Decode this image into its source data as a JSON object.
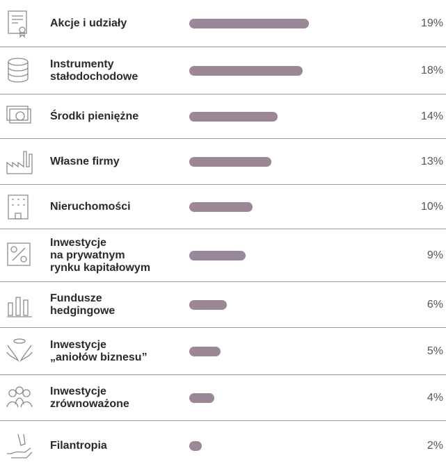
{
  "chart_data": {
    "type": "bar",
    "orientation": "horizontal",
    "categories": [
      "Akcje i udziały",
      "Instrumenty\nstałodochodowe",
      "Środki pieniężne",
      "Własne firmy",
      "Nieruchomości",
      "Inwestycje\nna prywatnym\nrynku kapitałowym",
      "Fundusze\nhedgingowe",
      "Inwestycje\n„aniołów biznesu”",
      "Inwestycje\nzrównoważone",
      "Filantropia"
    ],
    "values": [
      19,
      18,
      14,
      13,
      10,
      9,
      6,
      5,
      4,
      2
    ],
    "value_labels": [
      "19%",
      "18%",
      "14%",
      "13%",
      "10%",
      "9%",
      "6%",
      "5%",
      "4%",
      "2%"
    ],
    "color": "#9c8797"
  }
}
